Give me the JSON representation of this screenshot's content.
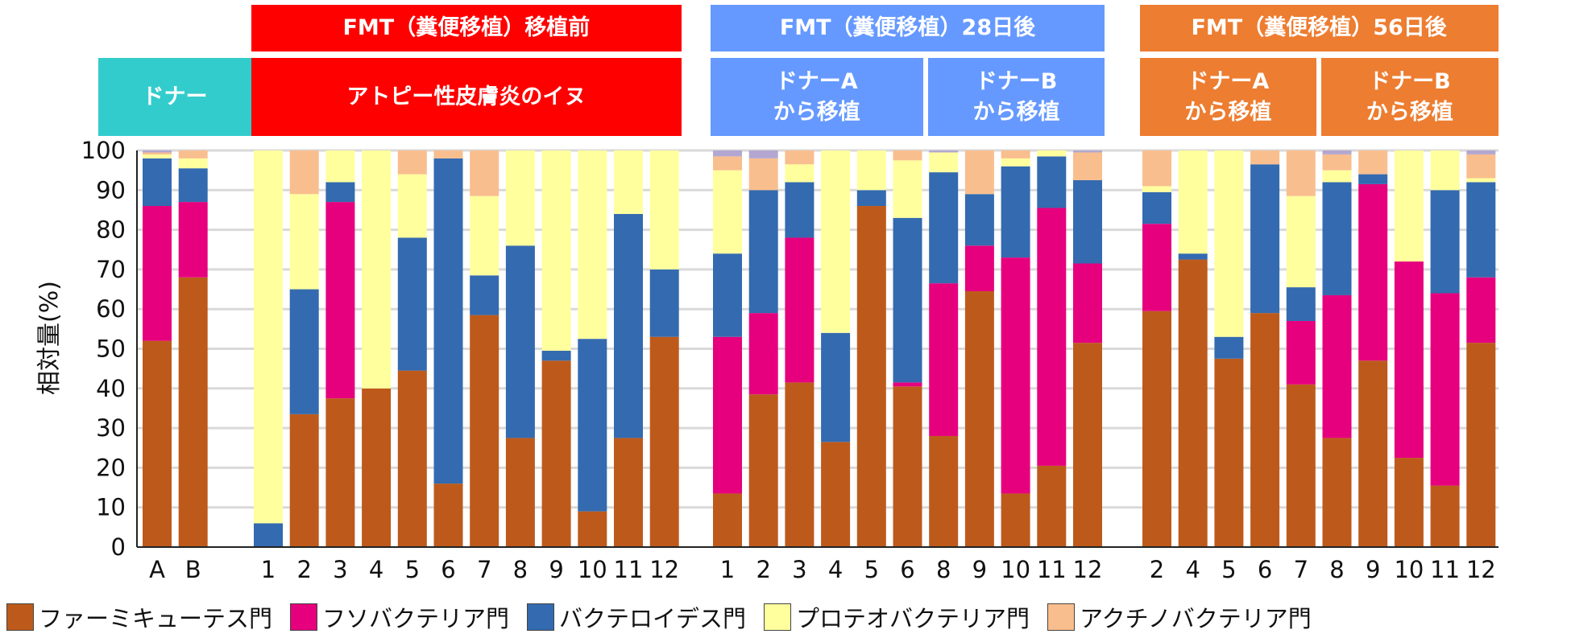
{
  "chart_data": {
    "type": "bar",
    "stacked": true,
    "ylabel": "相対量(%)",
    "ylim": [
      0,
      100
    ],
    "yticks": [
      0,
      10,
      20,
      30,
      40,
      50,
      60,
      70,
      80,
      90,
      100
    ],
    "grid": true,
    "legend_position": "bottom",
    "series_names": [
      "ファーミキューテス門",
      "フソバクテリア門",
      "バクテロイデス門",
      "プロテオバクテリア門",
      "アクチノバクテリア門"
    ],
    "series_colors": [
      "#bd5a1b",
      "#e6007e",
      "#346aaf",
      "#ffff9e",
      "#f9be8e"
    ],
    "other_color": "#b3a7d1",
    "headers": [
      {
        "label": "FMT（糞便移植）移植前",
        "color": "#ff0000"
      },
      {
        "label": "FMT（糞便移植）28日後",
        "color": "#6599ff"
      },
      {
        "label": "FMT（糞便移植）56日後",
        "color": "#ed7d31"
      }
    ],
    "subheaders": [
      {
        "label": "ドナー",
        "color": "#33cccc"
      },
      {
        "label": "アトピー性皮膚炎のイヌ",
        "color": "#ff0000"
      },
      {
        "label": "ドナーA\nから移植",
        "color": "#6599ff"
      },
      {
        "label": "ドナーB\nから移植",
        "color": "#6599ff"
      },
      {
        "label": "ドナーA\nから移植",
        "color": "#ed7d31"
      },
      {
        "label": "ドナーB\nから移植",
        "color": "#ed7d31"
      }
    ],
    "groups": [
      {
        "name": "ドナー",
        "categories": [
          "A",
          "B"
        ],
        "stacks": [
          [
            52,
            34,
            12,
            1,
            0.5
          ],
          [
            68,
            19,
            8.5,
            2.5,
            2
          ]
        ]
      },
      {
        "name": "移植前",
        "categories": [
          "1",
          "2",
          "3",
          "4",
          "5",
          "6",
          "7",
          "8",
          "9",
          "10",
          "11",
          "12"
        ],
        "stacks": [
          [
            0,
            0,
            6,
            94,
            0
          ],
          [
            33.5,
            0,
            31.5,
            24,
            11
          ],
          [
            37.5,
            49.5,
            5,
            8,
            0
          ],
          [
            40,
            0,
            0,
            60,
            0
          ],
          [
            44.5,
            0,
            33.5,
            16,
            6
          ],
          [
            16,
            0,
            82,
            0,
            2
          ],
          [
            58.5,
            0,
            10,
            20,
            11.5
          ],
          [
            27.5,
            0,
            48.5,
            24,
            0
          ],
          [
            47,
            0,
            2.5,
            50.5,
            0
          ],
          [
            9,
            0,
            43.5,
            47.5,
            0
          ],
          [
            27.5,
            0,
            56.5,
            16,
            0
          ],
          [
            53,
            0,
            17,
            30,
            0
          ]
        ]
      },
      {
        "name": "28日後",
        "categories": [
          "1",
          "2",
          "3",
          "4",
          "5",
          "6",
          "8",
          "9",
          "10",
          "11",
          "12"
        ],
        "stacks": [
          [
            13.5,
            39.5,
            21,
            21,
            3.5
          ],
          [
            38.5,
            20.5,
            31,
            0,
            8
          ],
          [
            41.5,
            36.5,
            14,
            4.5,
            3.5
          ],
          [
            26.5,
            0,
            27.5,
            46,
            0
          ],
          [
            86,
            0,
            4,
            10,
            0
          ],
          [
            40.5,
            1,
            41.5,
            14.5,
            2.5
          ],
          [
            28,
            38.5,
            28,
            5,
            0
          ],
          [
            64.5,
            11.5,
            13,
            0,
            11
          ],
          [
            13.5,
            59.5,
            23,
            2,
            2
          ],
          [
            20.5,
            65,
            13,
            1.5,
            0
          ],
          [
            51.5,
            20,
            21,
            0,
            7
          ]
        ]
      },
      {
        "name": "56日後",
        "categories": [
          "2",
          "4",
          "5",
          "6",
          "7",
          "8",
          "9",
          "10",
          "11",
          "12"
        ],
        "stacks": [
          [
            59.5,
            22,
            8,
            1.5,
            9
          ],
          [
            72.5,
            0,
            1.5,
            26,
            0
          ],
          [
            47.5,
            0,
            5.5,
            47,
            0
          ],
          [
            59,
            0,
            37.5,
            0,
            3.5
          ],
          [
            41,
            16,
            8.5,
            23,
            11.5
          ],
          [
            27.5,
            36,
            28.5,
            3,
            4
          ],
          [
            47,
            44.5,
            2.5,
            0,
            6
          ],
          [
            22.5,
            49.5,
            0,
            28,
            0
          ],
          [
            15.5,
            48.5,
            26,
            10,
            0
          ],
          [
            51.5,
            16.5,
            24,
            1,
            6
          ]
        ]
      }
    ]
  }
}
